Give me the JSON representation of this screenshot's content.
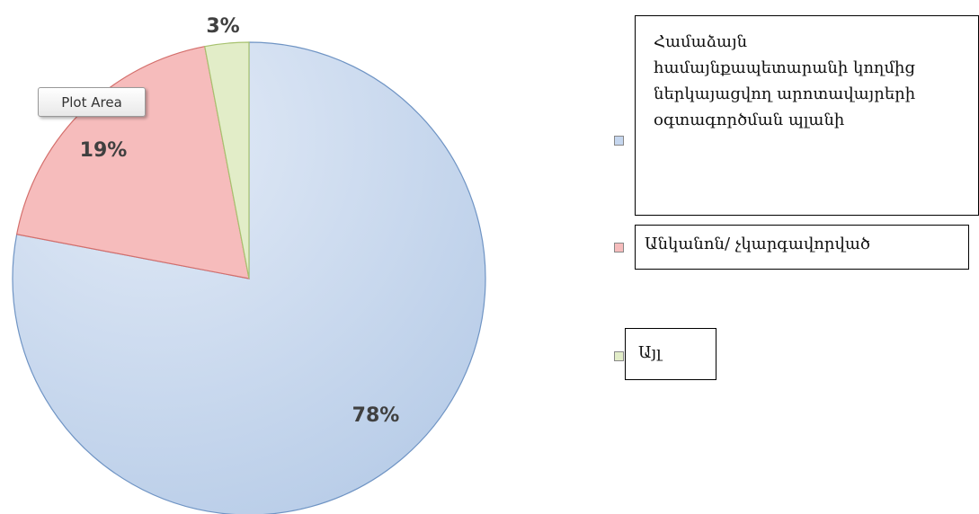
{
  "chart_data": {
    "type": "pie",
    "categories": [
      "Համաձայն համայնքապետարանի կողմից ներկայացվող արոտավայրերի օգտագործման պլանի",
      "Անկանոն/ չկարգավորված",
      "Այլ"
    ],
    "values": [
      78,
      19,
      3
    ],
    "value_labels": [
      "78%",
      "19%",
      "3%"
    ],
    "colors": [
      "#c5d6ee",
      "#f6bcbc",
      "#e2edc8"
    ],
    "tooltip": "Plot Area"
  }
}
